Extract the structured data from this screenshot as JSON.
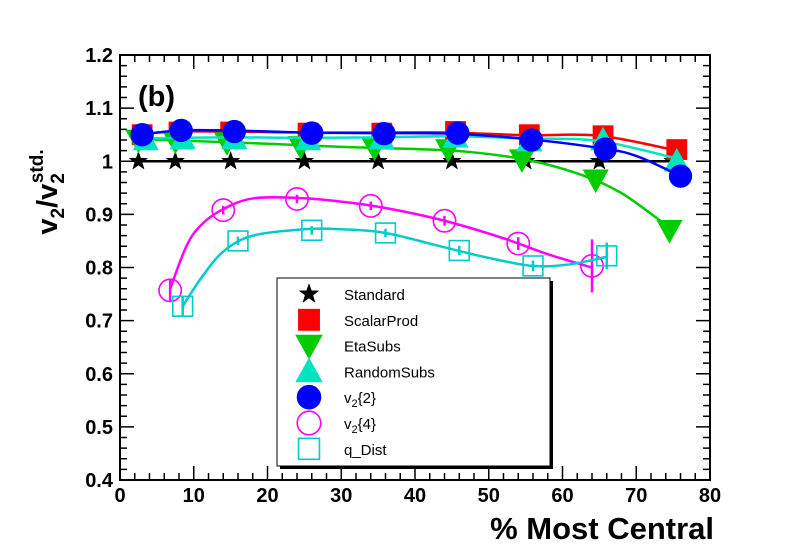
{
  "chart_data": {
    "type": "scatter",
    "panel_label": "(b)",
    "xlabel": "% Most Central",
    "ylabel": {
      "base": "v",
      "sub1": "2",
      "slash": "/v",
      "sub2": "2",
      "sup2": "std."
    },
    "xlim": [
      0,
      80
    ],
    "ylim": [
      0.4,
      1.2
    ],
    "xticks": [
      "0",
      "10",
      "20",
      "30",
      "40",
      "50",
      "60",
      "70",
      "80"
    ],
    "yticks": [
      "0.4",
      "0.5",
      "0.6",
      "0.7",
      "0.8",
      "0.9",
      "1",
      "1.1",
      "1.2"
    ],
    "legend_position": "lower-center",
    "series": [
      {
        "name": "Standard",
        "label": "Standard",
        "marker": "star",
        "color": "#000000",
        "filled": true,
        "x": [
          2.5,
          7.5,
          15,
          25,
          35,
          45,
          55,
          65,
          75
        ],
        "y": [
          1.0,
          1.0,
          1.0,
          1.0,
          1.0,
          1.0,
          1.0,
          1.0,
          1.0
        ],
        "err": [
          0.006,
          0.004,
          0.004,
          0.004,
          0.004,
          0.004,
          0.005,
          0.01,
          0.012
        ],
        "curve": [
          [
            2.5,
            1.0
          ],
          [
            75,
            1.0
          ]
        ]
      },
      {
        "name": "ScalarProd",
        "label": "ScalarProd",
        "marker": "square",
        "color": "#ff0000",
        "filled": true,
        "x": [
          3,
          8,
          15,
          25.5,
          35.5,
          45.5,
          55.5,
          65.5,
          75.5
        ],
        "y": [
          1.05,
          1.055,
          1.055,
          1.053,
          1.053,
          1.056,
          1.05,
          1.048,
          1.022
        ],
        "err": [
          0.005,
          0.005,
          0.005,
          0.005,
          0.005,
          0.005,
          0.005,
          0.007,
          0.012
        ],
        "curve": [
          [
            3,
            1.052
          ],
          [
            8,
            1.056
          ],
          [
            15,
            1.056
          ],
          [
            25,
            1.054
          ],
          [
            35,
            1.054
          ],
          [
            45,
            1.054
          ],
          [
            55,
            1.049
          ],
          [
            65,
            1.048
          ],
          [
            75.5,
            1.02
          ]
        ]
      },
      {
        "name": "EtaSubs",
        "label": "EtaSubs",
        "marker": "triangle-down",
        "color": "#00cc00",
        "filled": true,
        "x": [
          2.5,
          7.5,
          14.5,
          24.5,
          34.5,
          44.5,
          54.5,
          64.5,
          74.5
        ],
        "y": [
          1.04,
          1.038,
          1.035,
          1.028,
          1.025,
          1.022,
          1.003,
          0.965,
          0.87
        ],
        "err": [
          0.005,
          0.004,
          0.004,
          0.004,
          0.004,
          0.004,
          0.005,
          0.007,
          0.015
        ],
        "curve": [
          [
            2.5,
            1.042
          ],
          [
            10,
            1.038
          ],
          [
            20,
            1.033
          ],
          [
            30,
            1.027
          ],
          [
            40,
            1.023
          ],
          [
            47,
            1.018
          ],
          [
            55,
            1.003
          ],
          [
            62,
            0.977
          ],
          [
            68,
            0.94
          ],
          [
            74.5,
            0.875
          ]
        ]
      },
      {
        "name": "RandomSubs",
        "label": "RandomSubs",
        "marker": "triangle-up",
        "color": "#00e5c0",
        "filled": true,
        "x": [
          3.5,
          8.5,
          15.5,
          25.5,
          35.5,
          45.5,
          55.5,
          65.5,
          75.5
        ],
        "y": [
          1.04,
          1.042,
          1.042,
          1.04,
          1.042,
          1.045,
          1.038,
          1.04,
          1.0
        ],
        "err": [
          0.004,
          0.004,
          0.004,
          0.004,
          0.004,
          0.004,
          0.005,
          0.007,
          0.012
        ],
        "curve": [
          [
            3.5,
            1.043
          ],
          [
            15,
            1.045
          ],
          [
            25,
            1.044
          ],
          [
            35,
            1.045
          ],
          [
            45,
            1.047
          ],
          [
            55,
            1.043
          ],
          [
            65,
            1.038
          ],
          [
            75.5,
            1.005
          ]
        ]
      },
      {
        "name": "v2{2}",
        "label": {
          "base": "v",
          "sub": "2",
          "rest": "{2}"
        },
        "marker": "circle",
        "color": "#0000ff",
        "filled": true,
        "x": [
          3,
          8.3,
          15.5,
          26,
          35.8,
          45.8,
          55.8,
          65.8,
          76
        ],
        "y": [
          1.05,
          1.058,
          1.056,
          1.053,
          1.052,
          1.053,
          1.04,
          1.023,
          0.972
        ],
        "err": [
          0.004,
          0.004,
          0.004,
          0.004,
          0.004,
          0.004,
          0.005,
          0.006,
          0.012
        ],
        "curve": [
          [
            3,
            1.05
          ],
          [
            8,
            1.058
          ],
          [
            15,
            1.058
          ],
          [
            25,
            1.054
          ],
          [
            35,
            1.053
          ],
          [
            45,
            1.052
          ],
          [
            55,
            1.042
          ],
          [
            65,
            1.025
          ],
          [
            70,
            1.01
          ],
          [
            76,
            0.972
          ]
        ]
      },
      {
        "name": "v2{4}",
        "label": {
          "base": "v",
          "sub": "2",
          "rest": "{4}"
        },
        "marker": "circle",
        "color": "#ff00ff",
        "filled": false,
        "x": [
          6.8,
          14,
          24,
          34,
          44,
          54,
          64
        ],
        "y": [
          0.757,
          0.908,
          0.929,
          0.916,
          0.888,
          0.845,
          0.803
        ],
        "err": [
          0.02,
          0.008,
          0.008,
          0.008,
          0.009,
          0.012,
          0.05
        ],
        "curve": [
          [
            6.8,
            0.76
          ],
          [
            9,
            0.84
          ],
          [
            11,
            0.88
          ],
          [
            14,
            0.91
          ],
          [
            18,
            0.93
          ],
          [
            24,
            0.931
          ],
          [
            30,
            0.924
          ],
          [
            36,
            0.912
          ],
          [
            44,
            0.888
          ],
          [
            52,
            0.855
          ],
          [
            58,
            0.825
          ],
          [
            64,
            0.8
          ]
        ]
      },
      {
        "name": "q_Dist",
        "label": "q_Dist",
        "marker": "square",
        "color": "#00cccc",
        "filled": false,
        "x": [
          8.5,
          16,
          26,
          36,
          46,
          56,
          66
        ],
        "y": [
          0.727,
          0.85,
          0.87,
          0.865,
          0.832,
          0.803,
          0.822
        ],
        "err": [
          0.018,
          0.008,
          0.008,
          0.008,
          0.009,
          0.01,
          0.025
        ],
        "curve": [
          [
            8.5,
            0.727
          ],
          [
            11,
            0.78
          ],
          [
            14,
            0.83
          ],
          [
            18,
            0.86
          ],
          [
            25,
            0.872
          ],
          [
            30,
            0.872
          ],
          [
            36,
            0.865
          ],
          [
            44,
            0.838
          ],
          [
            50,
            0.818
          ],
          [
            56,
            0.803
          ],
          [
            61,
            0.806
          ],
          [
            66,
            0.82
          ]
        ]
      }
    ]
  }
}
